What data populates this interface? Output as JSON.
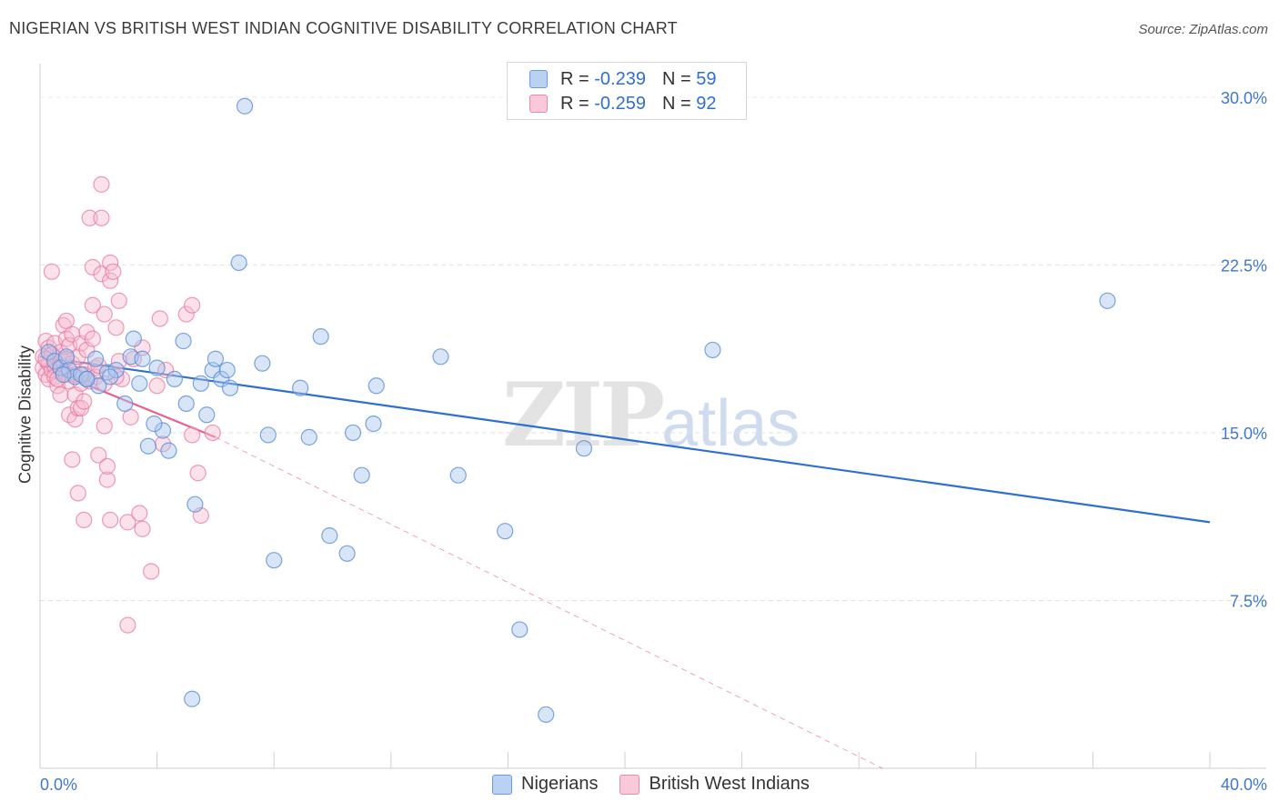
{
  "header": {
    "title": "NIGERIAN VS BRITISH WEST INDIAN COGNITIVE DISABILITY CORRELATION CHART",
    "source": "Source: ZipAtlas.com"
  },
  "legend": {
    "rows": [
      {
        "r_label": "R =",
        "r_value": "-0.239",
        "n_label": "N =",
        "n_value": "59"
      },
      {
        "r_label": "R =",
        "r_value": "-0.259",
        "n_label": "N =",
        "n_value": "92"
      }
    ]
  },
  "watermark": {
    "zip": "ZIP",
    "atlas": "atlas"
  },
  "colors": {
    "blue_fill": "#a9c6ee",
    "blue_stroke": "#5b8fd6",
    "blue_line": "#2f6fce",
    "pink_fill": "#f6bcd0",
    "pink_stroke": "#e8799f",
    "pink_line": "#e8608f",
    "grid": "#e2e2e2",
    "tick_text": "#3f78cf"
  },
  "chart_data": {
    "type": "scatter",
    "title": "NIGERIAN VS BRITISH WEST INDIAN COGNITIVE DISABILITY CORRELATION CHART",
    "xlabel": "",
    "ylabel": "Cognitive Disability",
    "xlim": [
      0,
      40
    ],
    "ylim": [
      0,
      31.5
    ],
    "x_tick_labels": [
      "0.0%",
      "40.0%"
    ],
    "y_ticks": [
      7.5,
      15.0,
      22.5,
      30.0
    ],
    "y_tick_labels": [
      "7.5%",
      "15.0%",
      "22.5%",
      "30.0%"
    ],
    "grid": true,
    "legend_position": "top-center",
    "series": [
      {
        "name": "Nigerians",
        "color": "#a9c6ee",
        "r": -0.239,
        "n": 59,
        "trend": {
          "x": [
            0,
            40
          ],
          "y": [
            18.4,
            11.0
          ],
          "style": "solid"
        },
        "points": [
          [
            0.3,
            18.6
          ],
          [
            0.5,
            18.2
          ],
          [
            0.7,
            17.9
          ],
          [
            0.9,
            18.4
          ],
          [
            1.0,
            17.8
          ],
          [
            1.2,
            17.5
          ],
          [
            1.4,
            17.6
          ],
          [
            1.6,
            17.4
          ],
          [
            1.9,
            18.3
          ],
          [
            2.0,
            17.1
          ],
          [
            2.3,
            17.7
          ],
          [
            2.6,
            17.8
          ],
          [
            2.9,
            16.3
          ],
          [
            3.1,
            18.4
          ],
          [
            3.2,
            19.2
          ],
          [
            3.4,
            17.2
          ],
          [
            3.5,
            18.3
          ],
          [
            3.7,
            14.4
          ],
          [
            4.0,
            17.9
          ],
          [
            4.2,
            15.1
          ],
          [
            4.4,
            14.2
          ],
          [
            4.6,
            17.4
          ],
          [
            3.9,
            15.4
          ],
          [
            4.9,
            19.1
          ],
          [
            5.0,
            16.3
          ],
          [
            5.2,
            3.1
          ],
          [
            5.3,
            11.8
          ],
          [
            5.5,
            17.2
          ],
          [
            5.7,
            15.8
          ],
          [
            5.9,
            17.8
          ],
          [
            6.0,
            18.3
          ],
          [
            6.2,
            17.4
          ],
          [
            6.4,
            17.8
          ],
          [
            6.5,
            17.0
          ],
          [
            6.8,
            22.6
          ],
          [
            7.0,
            29.6
          ],
          [
            7.6,
            18.1
          ],
          [
            7.8,
            14.9
          ],
          [
            8.0,
            9.3
          ],
          [
            8.9,
            17.0
          ],
          [
            9.2,
            14.8
          ],
          [
            9.6,
            19.3
          ],
          [
            9.9,
            10.4
          ],
          [
            10.5,
            9.6
          ],
          [
            10.7,
            15.0
          ],
          [
            11.0,
            13.1
          ],
          [
            11.4,
            15.4
          ],
          [
            11.5,
            17.1
          ],
          [
            13.7,
            18.4
          ],
          [
            14.3,
            13.1
          ],
          [
            15.9,
            10.6
          ],
          [
            16.4,
            6.2
          ],
          [
            17.3,
            2.4
          ],
          [
            18.6,
            14.3
          ],
          [
            23.0,
            18.7
          ],
          [
            36.5,
            20.9
          ],
          [
            1.6,
            17.4
          ],
          [
            0.8,
            17.6
          ],
          [
            2.4,
            17.5
          ]
        ]
      },
      {
        "name": "British West Indians",
        "color": "#f6bcd0",
        "r": -0.259,
        "n": 92,
        "trend": {
          "x": [
            0,
            6.0
          ],
          "y": [
            18.0,
            14.8
          ],
          "style": "solid",
          "extension": {
            "x": [
              6.0,
              28.8
            ],
            "y": [
              14.8,
              0.0
            ],
            "style": "dashed"
          }
        },
        "points": [
          [
            0.1,
            18.4
          ],
          [
            0.1,
            17.9
          ],
          [
            0.2,
            19.1
          ],
          [
            0.2,
            17.6
          ],
          [
            0.3,
            18.1
          ],
          [
            0.3,
            17.4
          ],
          [
            0.3,
            18.8
          ],
          [
            0.4,
            22.2
          ],
          [
            0.4,
            17.8
          ],
          [
            0.5,
            18.0
          ],
          [
            0.5,
            17.5
          ],
          [
            0.5,
            19.0
          ],
          [
            0.6,
            18.3
          ],
          [
            0.6,
            17.1
          ],
          [
            0.7,
            17.9
          ],
          [
            0.7,
            18.6
          ],
          [
            0.7,
            16.7
          ],
          [
            0.8,
            17.7
          ],
          [
            0.8,
            19.8
          ],
          [
            0.8,
            18.2
          ],
          [
            0.9,
            20.0
          ],
          [
            0.9,
            17.6
          ],
          [
            0.9,
            19.2
          ],
          [
            1.0,
            18.9
          ],
          [
            1.0,
            15.8
          ],
          [
            1.0,
            17.3
          ],
          [
            1.1,
            19.4
          ],
          [
            1.1,
            18.1
          ],
          [
            1.1,
            13.8
          ],
          [
            1.2,
            16.7
          ],
          [
            1.2,
            17.6
          ],
          [
            1.2,
            15.6
          ],
          [
            1.3,
            18.4
          ],
          [
            1.3,
            12.3
          ],
          [
            1.3,
            16.1
          ],
          [
            1.4,
            19.0
          ],
          [
            1.4,
            17.2
          ],
          [
            1.4,
            16.1
          ],
          [
            1.5,
            16.4
          ],
          [
            1.5,
            11.1
          ],
          [
            1.6,
            19.5
          ],
          [
            1.6,
            17.8
          ],
          [
            1.6,
            18.7
          ],
          [
            1.7,
            24.6
          ],
          [
            1.7,
            17.3
          ],
          [
            1.8,
            19.2
          ],
          [
            1.8,
            22.4
          ],
          [
            1.8,
            20.7
          ],
          [
            1.9,
            17.9
          ],
          [
            1.9,
            17.5
          ],
          [
            2.0,
            18.0
          ],
          [
            2.0,
            14.0
          ],
          [
            2.1,
            22.1
          ],
          [
            2.1,
            24.6
          ],
          [
            2.1,
            26.1
          ],
          [
            2.2,
            17.2
          ],
          [
            2.2,
            15.3
          ],
          [
            2.2,
            20.3
          ],
          [
            2.3,
            12.9
          ],
          [
            2.3,
            13.5
          ],
          [
            2.4,
            22.6
          ],
          [
            2.4,
            21.8
          ],
          [
            2.4,
            11.1
          ],
          [
            2.5,
            22.2
          ],
          [
            2.6,
            19.7
          ],
          [
            2.7,
            20.9
          ],
          [
            2.7,
            18.2
          ],
          [
            2.8,
            17.4
          ],
          [
            3.0,
            6.4
          ],
          [
            3.0,
            11.0
          ],
          [
            3.1,
            15.7
          ],
          [
            3.2,
            18.3
          ],
          [
            3.4,
            11.4
          ],
          [
            3.5,
            18.8
          ],
          [
            3.5,
            10.7
          ],
          [
            3.8,
            8.8
          ],
          [
            4.0,
            17.1
          ],
          [
            4.1,
            20.1
          ],
          [
            4.2,
            14.5
          ],
          [
            4.3,
            17.8
          ],
          [
            5.0,
            20.3
          ],
          [
            5.2,
            20.7
          ],
          [
            5.2,
            14.9
          ],
          [
            5.4,
            13.2
          ],
          [
            5.5,
            11.3
          ],
          [
            5.9,
            15.0
          ],
          [
            0.6,
            17.4
          ],
          [
            0.4,
            18.5
          ],
          [
            1.5,
            17.6
          ],
          [
            0.2,
            18.3
          ],
          [
            2.6,
            17.5
          ],
          [
            0.9,
            18.3
          ]
        ]
      }
    ]
  },
  "bottom_legend": {
    "items": [
      "Nigerians",
      "British West Indians"
    ]
  }
}
